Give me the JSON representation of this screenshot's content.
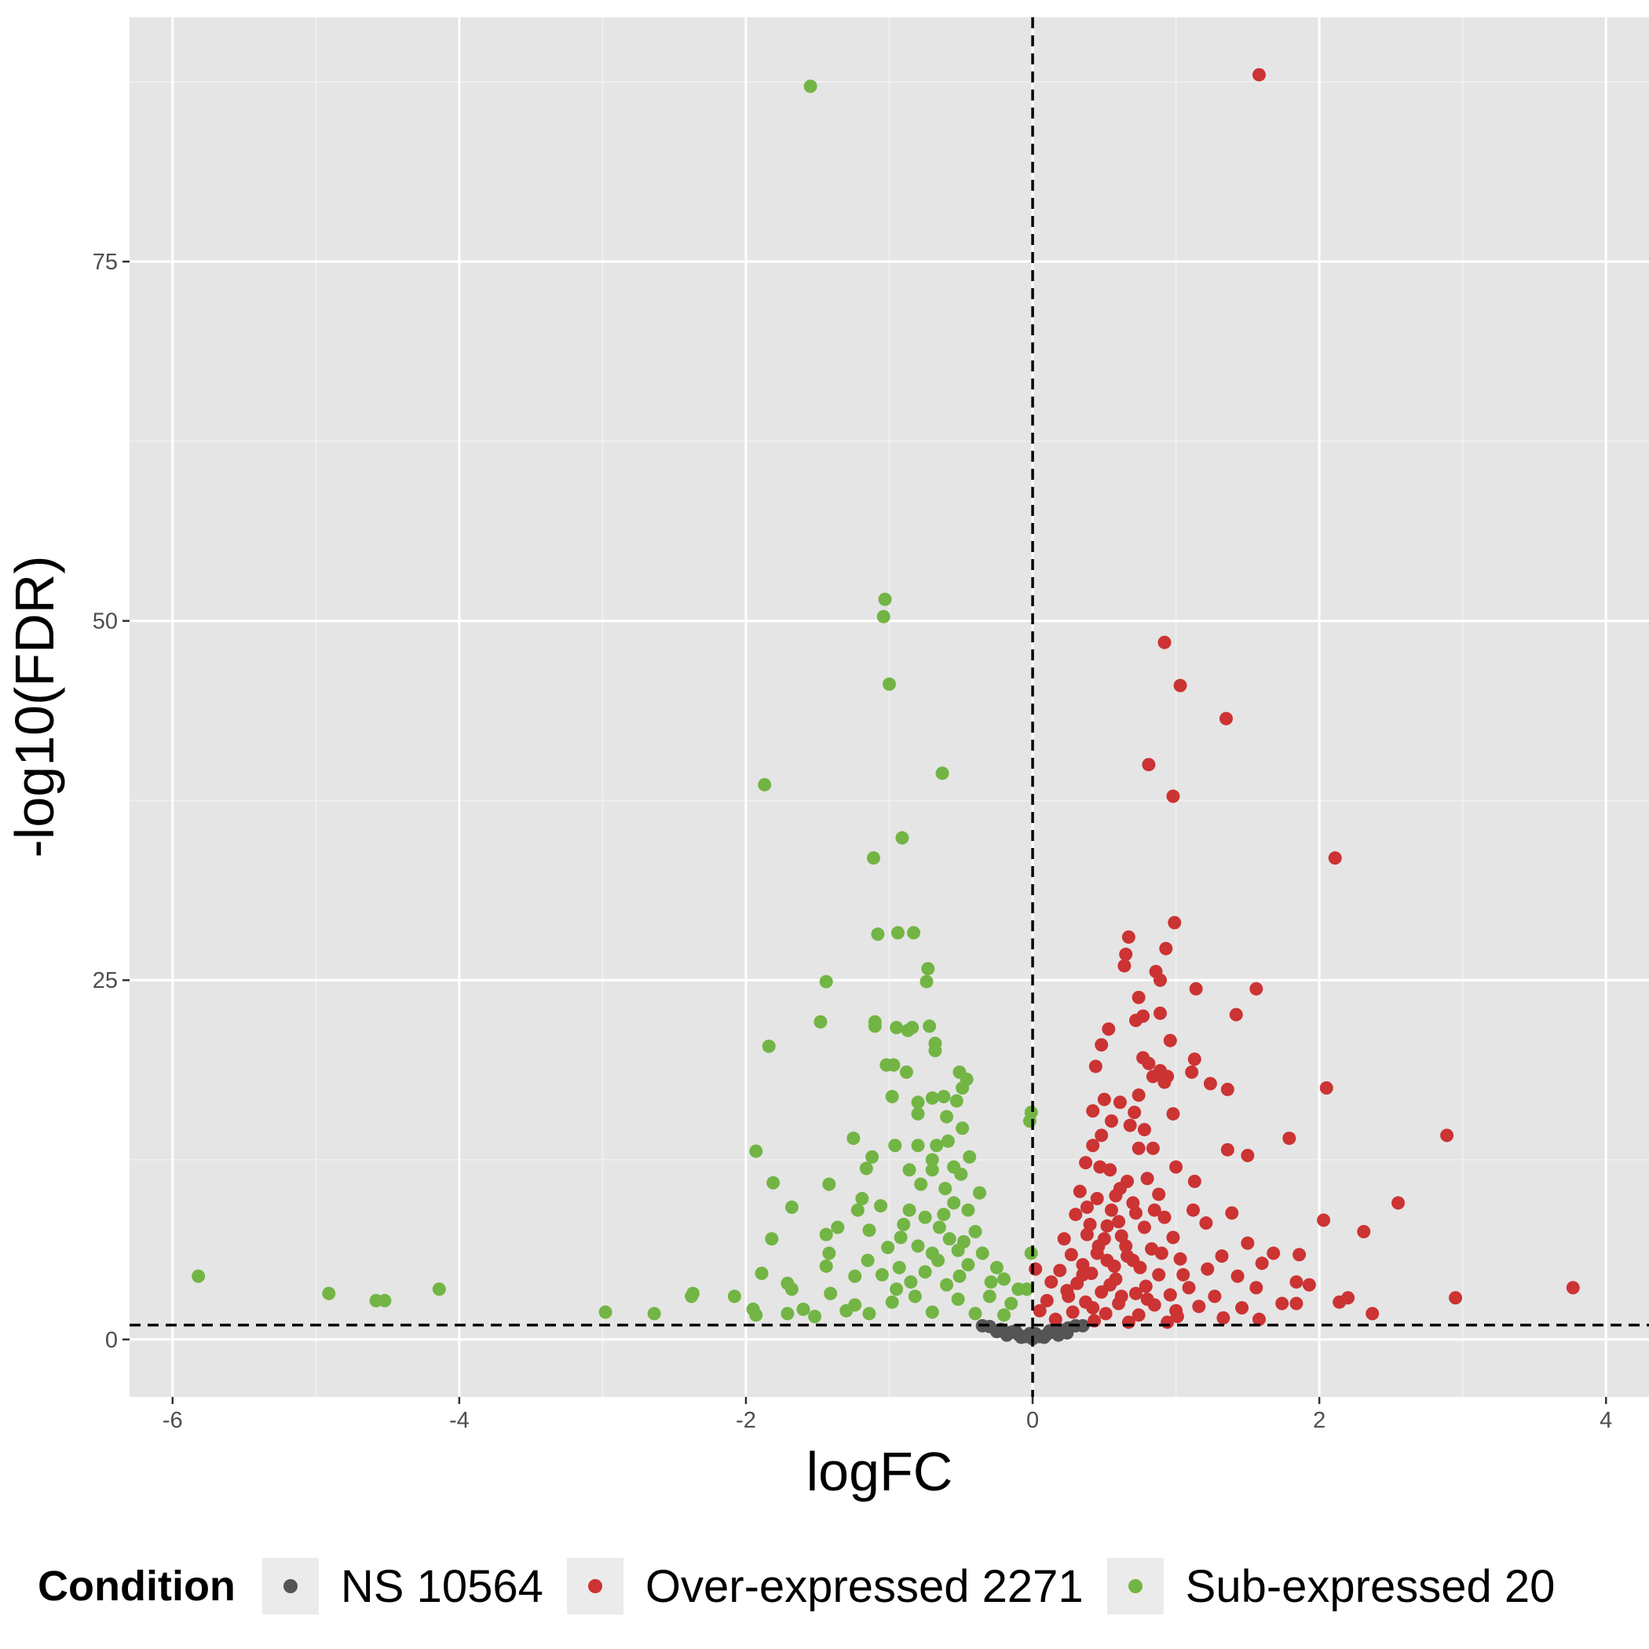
{
  "chart_data": {
    "type": "scatter",
    "title": "",
    "xlabel": "logFC",
    "ylabel": "-log10(FDR)",
    "xlim": [
      -6.3,
      4.3
    ],
    "ylim": [
      -4,
      92
    ],
    "x_ticks": [
      -6,
      -4,
      -2,
      0,
      2,
      4
    ],
    "x_tick_labels": [
      "-6",
      "-4",
      "-2",
      "0",
      "2",
      "4"
    ],
    "y_ticks": [
      0,
      25,
      50,
      75
    ],
    "y_tick_labels": [
      "0",
      "25",
      "50",
      "75"
    ],
    "grid": true,
    "reference_lines": {
      "vertical_x": 0,
      "horizontal_y": 1.0,
      "style": "dashed"
    },
    "legend": {
      "title": "Condition",
      "position": "bottom",
      "entries": [
        {
          "label": "NS 10564",
          "color": "#555555"
        },
        {
          "label": "Over-expressed 2271",
          "color": "#cc3333"
        },
        {
          "label": "Sub-expressed 20",
          "color": "#72b544"
        }
      ]
    },
    "series": [
      {
        "name": "NS 10564",
        "color": "#555555",
        "points": [
          [
            -0.3,
            0.9
          ],
          [
            -0.22,
            0.7
          ],
          [
            -0.15,
            0.5
          ],
          [
            -0.1,
            0.35
          ],
          [
            -0.05,
            0.2
          ],
          [
            0.0,
            0.05
          ],
          [
            0.05,
            0.2
          ],
          [
            0.1,
            0.35
          ],
          [
            0.15,
            0.5
          ],
          [
            0.2,
            0.65
          ],
          [
            0.25,
            0.8
          ],
          [
            0.3,
            0.95
          ],
          [
            -0.25,
            0.55
          ],
          [
            -0.18,
            0.3
          ],
          [
            -0.08,
            0.15
          ],
          [
            0.08,
            0.15
          ],
          [
            0.18,
            0.3
          ],
          [
            0.24,
            0.45
          ],
          [
            -0.35,
            0.95
          ],
          [
            0.35,
            0.95
          ],
          [
            -0.12,
            0.6
          ],
          [
            0.12,
            0.6
          ],
          [
            -0.02,
            0.4
          ],
          [
            0.02,
            0.4
          ]
        ]
      },
      {
        "name": "Over-expressed 2271",
        "color": "#cc3333",
        "points": [
          [
            1.58,
            88.0
          ],
          [
            0.92,
            48.5
          ],
          [
            1.03,
            45.5
          ],
          [
            1.35,
            43.2
          ],
          [
            0.81,
            40.0
          ],
          [
            0.98,
            37.8
          ],
          [
            2.11,
            33.5
          ],
          [
            0.99,
            29.0
          ],
          [
            0.67,
            28.0
          ],
          [
            0.65,
            26.8
          ],
          [
            0.93,
            27.2
          ],
          [
            0.86,
            25.6
          ],
          [
            0.64,
            26.0
          ],
          [
            0.89,
            25.0
          ],
          [
            1.14,
            24.4
          ],
          [
            1.56,
            24.4
          ],
          [
            0.74,
            23.8
          ],
          [
            1.42,
            22.6
          ],
          [
            0.89,
            22.7
          ],
          [
            0.77,
            22.5
          ],
          [
            0.72,
            22.2
          ],
          [
            0.53,
            21.6
          ],
          [
            0.48,
            20.5
          ],
          [
            0.96,
            20.8
          ],
          [
            0.77,
            19.6
          ],
          [
            0.81,
            19.2
          ],
          [
            0.44,
            19.0
          ],
          [
            1.13,
            19.5
          ],
          [
            0.89,
            18.7
          ],
          [
            0.84,
            18.3
          ],
          [
            0.94,
            18.3
          ],
          [
            0.92,
            17.9
          ],
          [
            1.11,
            18.6
          ],
          [
            1.24,
            17.8
          ],
          [
            1.36,
            17.4
          ],
          [
            2.05,
            17.5
          ],
          [
            0.74,
            17.0
          ],
          [
            0.5,
            16.7
          ],
          [
            0.61,
            16.5
          ],
          [
            0.42,
            15.9
          ],
          [
            0.71,
            15.8
          ],
          [
            0.98,
            15.7
          ],
          [
            0.55,
            15.2
          ],
          [
            0.68,
            14.9
          ],
          [
            0.78,
            14.6
          ],
          [
            0.48,
            14.2
          ],
          [
            1.79,
            14.0
          ],
          [
            2.89,
            14.2
          ],
          [
            0.42,
            13.5
          ],
          [
            0.74,
            13.3
          ],
          [
            0.84,
            13.3
          ],
          [
            1.36,
            13.2
          ],
          [
            1.5,
            12.8
          ],
          [
            0.37,
            12.3
          ],
          [
            1.0,
            12.0
          ],
          [
            0.54,
            11.8
          ],
          [
            0.8,
            11.2
          ],
          [
            1.13,
            11.0
          ],
          [
            0.61,
            10.5
          ],
          [
            0.33,
            10.3
          ],
          [
            0.88,
            10.1
          ],
          [
            2.55,
            9.5
          ],
          [
            0.45,
            9.8
          ],
          [
            0.7,
            9.5
          ],
          [
            1.12,
            9.0
          ],
          [
            1.39,
            8.8
          ],
          [
            2.03,
            8.3
          ],
          [
            0.3,
            8.7
          ],
          [
            0.92,
            8.5
          ],
          [
            1.21,
            8.1
          ],
          [
            0.52,
            7.9
          ],
          [
            0.78,
            7.8
          ],
          [
            2.31,
            7.5
          ],
          [
            0.38,
            7.3
          ],
          [
            0.62,
            7.2
          ],
          [
            0.98,
            7.1
          ],
          [
            0.22,
            7.0
          ],
          [
            1.5,
            6.7
          ],
          [
            1.68,
            6.0
          ],
          [
            0.46,
            6.5
          ],
          [
            0.83,
            6.3
          ],
          [
            1.32,
            5.8
          ],
          [
            1.86,
            5.9
          ],
          [
            0.27,
            5.9
          ],
          [
            0.66,
            5.8
          ],
          [
            1.03,
            5.6
          ],
          [
            1.6,
            5.3
          ],
          [
            0.35,
            5.2
          ],
          [
            0.57,
            5.1
          ],
          [
            0.75,
            5.0
          ],
          [
            1.22,
            4.9
          ],
          [
            0.02,
            4.9
          ],
          [
            0.19,
            4.8
          ],
          [
            0.41,
            4.6
          ],
          [
            0.88,
            4.5
          ],
          [
            1.43,
            4.4
          ],
          [
            1.84,
            4.0
          ],
          [
            1.93,
            3.8
          ],
          [
            0.13,
            4.0
          ],
          [
            0.31,
            3.9
          ],
          [
            0.54,
            3.8
          ],
          [
            0.79,
            3.7
          ],
          [
            1.09,
            3.6
          ],
          [
            1.56,
            3.6
          ],
          [
            3.77,
            3.6
          ],
          [
            0.24,
            3.4
          ],
          [
            0.48,
            3.3
          ],
          [
            0.72,
            3.2
          ],
          [
            0.96,
            3.1
          ],
          [
            1.27,
            3.0
          ],
          [
            2.95,
            2.9
          ],
          [
            2.2,
            2.9
          ],
          [
            2.14,
            2.6
          ],
          [
            1.74,
            2.5
          ],
          [
            1.84,
            2.5
          ],
          [
            0.1,
            2.7
          ],
          [
            0.37,
            2.6
          ],
          [
            0.6,
            2.5
          ],
          [
            0.85,
            2.4
          ],
          [
            1.16,
            2.3
          ],
          [
            1.46,
            2.2
          ],
          [
            2.37,
            1.8
          ],
          [
            0.05,
            2.0
          ],
          [
            0.28,
            1.9
          ],
          [
            0.51,
            1.8
          ],
          [
            0.74,
            1.7
          ],
          [
            1.01,
            1.6
          ],
          [
            1.33,
            1.5
          ],
          [
            1.58,
            1.4
          ],
          [
            0.16,
            1.4
          ],
          [
            0.43,
            1.3
          ],
          [
            0.67,
            1.2
          ],
          [
            0.94,
            1.2
          ],
          [
            0.55,
            9.0
          ],
          [
            0.6,
            8.2
          ],
          [
            0.4,
            8.0
          ],
          [
            0.5,
            7.0
          ],
          [
            0.45,
            6.0
          ],
          [
            0.65,
            6.5
          ],
          [
            0.7,
            5.5
          ],
          [
            0.58,
            4.2
          ],
          [
            0.62,
            3.0
          ],
          [
            0.35,
            4.5
          ],
          [
            0.85,
            9.0
          ],
          [
            0.9,
            6.0
          ],
          [
            1.05,
            4.5
          ],
          [
            0.25,
            3.0
          ],
          [
            0.42,
            2.2
          ],
          [
            0.8,
            2.8
          ],
          [
            1.0,
            2.0
          ],
          [
            0.47,
            12.0
          ],
          [
            0.66,
            11.0
          ],
          [
            0.58,
            10.0
          ],
          [
            0.38,
            9.2
          ],
          [
            0.72,
            8.8
          ],
          [
            0.52,
            5.5
          ]
        ]
      },
      {
        "name": "Sub-expressed 20",
        "color": "#72b544",
        "points": [
          [
            -1.55,
            87.2
          ],
          [
            -1.03,
            51.5
          ],
          [
            -1.04,
            50.3
          ],
          [
            -1.0,
            45.6
          ],
          [
            -0.63,
            39.4
          ],
          [
            -1.87,
            38.6
          ],
          [
            -0.91,
            34.9
          ],
          [
            -1.11,
            33.5
          ],
          [
            -0.83,
            28.3
          ],
          [
            -0.94,
            28.3
          ],
          [
            -1.08,
            28.2
          ],
          [
            -0.73,
            25.8
          ],
          [
            -0.74,
            24.9
          ],
          [
            -1.44,
            24.9
          ],
          [
            -1.1,
            22.1
          ],
          [
            -1.1,
            21.8
          ],
          [
            -1.48,
            22.1
          ],
          [
            -0.95,
            21.7
          ],
          [
            -0.84,
            21.7
          ],
          [
            -0.87,
            21.5
          ],
          [
            -0.72,
            21.8
          ],
          [
            -0.68,
            20.6
          ],
          [
            -1.84,
            20.4
          ],
          [
            -0.68,
            20.1
          ],
          [
            -1.02,
            19.1
          ],
          [
            -0.97,
            19.1
          ],
          [
            -0.88,
            18.6
          ],
          [
            -0.51,
            18.6
          ],
          [
            -0.46,
            18.1
          ],
          [
            -0.49,
            17.5
          ],
          [
            -0.98,
            16.9
          ],
          [
            -0.7,
            16.8
          ],
          [
            -0.62,
            16.9
          ],
          [
            -0.8,
            16.5
          ],
          [
            -0.53,
            16.6
          ],
          [
            -0.8,
            15.7
          ],
          [
            -0.6,
            15.5
          ],
          [
            -0.49,
            14.7
          ],
          [
            -0.01,
            15.8
          ],
          [
            -0.02,
            15.2
          ],
          [
            -1.25,
            14.0
          ],
          [
            -0.59,
            13.8
          ],
          [
            -0.96,
            13.5
          ],
          [
            -0.8,
            13.5
          ],
          [
            -0.67,
            13.5
          ],
          [
            -1.93,
            13.1
          ],
          [
            -1.12,
            12.7
          ],
          [
            -0.44,
            12.7
          ],
          [
            -1.16,
            11.9
          ],
          [
            -0.86,
            11.8
          ],
          [
            -0.7,
            11.8
          ],
          [
            -0.5,
            11.5
          ],
          [
            -1.81,
            10.9
          ],
          [
            -0.37,
            10.2
          ],
          [
            -1.19,
            9.8
          ],
          [
            -1.42,
            10.8
          ],
          [
            -1.68,
            9.2
          ],
          [
            -1.06,
            9.3
          ],
          [
            -0.86,
            9.0
          ],
          [
            -1.22,
            9.0
          ],
          [
            -0.62,
            8.7
          ],
          [
            -1.14,
            7.6
          ],
          [
            -1.36,
            7.8
          ],
          [
            -1.44,
            7.3
          ],
          [
            -0.92,
            7.1
          ],
          [
            -1.82,
            7.0
          ],
          [
            -0.48,
            6.8
          ],
          [
            -1.01,
            6.4
          ],
          [
            -1.42,
            6.0
          ],
          [
            -0.7,
            6.0
          ],
          [
            -1.15,
            5.5
          ],
          [
            -1.44,
            5.1
          ],
          [
            -1.89,
            4.6
          ],
          [
            -0.01,
            6.0
          ],
          [
            -0.93,
            5.0
          ],
          [
            -0.75,
            4.7
          ],
          [
            -0.51,
            4.4
          ],
          [
            -1.24,
            4.4
          ],
          [
            -1.71,
            3.9
          ],
          [
            -0.29,
            4.0
          ],
          [
            -1.68,
            3.5
          ],
          [
            -2.37,
            3.2
          ],
          [
            -2.38,
            3.0
          ],
          [
            -2.08,
            3.0
          ],
          [
            -5.82,
            4.4
          ],
          [
            -4.91,
            3.2
          ],
          [
            -4.58,
            2.7
          ],
          [
            -4.52,
            2.7
          ],
          [
            -4.14,
            3.5
          ],
          [
            -1.41,
            3.2
          ],
          [
            -0.82,
            3.0
          ],
          [
            -0.52,
            2.8
          ],
          [
            -0.04,
            3.5
          ],
          [
            -0.98,
            2.6
          ],
          [
            -1.24,
            2.4
          ],
          [
            -1.6,
            2.1
          ],
          [
            -1.95,
            2.1
          ],
          [
            -2.98,
            1.9
          ],
          [
            -2.64,
            1.8
          ],
          [
            -1.93,
            1.7
          ],
          [
            -1.52,
            1.6
          ],
          [
            -1.71,
            1.8
          ],
          [
            -1.14,
            1.8
          ],
          [
            -0.7,
            1.9
          ],
          [
            -0.4,
            1.8
          ],
          [
            -0.2,
            1.7
          ],
          [
            -0.61,
            10.5
          ],
          [
            -0.55,
            9.5
          ],
          [
            -0.45,
            9.0
          ],
          [
            -0.75,
            8.5
          ],
          [
            -0.65,
            7.8
          ],
          [
            -0.58,
            7.0
          ],
          [
            -0.4,
            7.5
          ],
          [
            -0.8,
            6.5
          ],
          [
            -0.52,
            6.2
          ],
          [
            -0.35,
            6.0
          ],
          [
            -0.66,
            5.5
          ],
          [
            -0.45,
            5.2
          ],
          [
            -0.85,
            4.0
          ],
          [
            -0.6,
            3.8
          ],
          [
            -0.3,
            3.0
          ],
          [
            -0.7,
            12.5
          ],
          [
            -0.55,
            12.0
          ],
          [
            -0.78,
            10.8
          ],
          [
            -0.9,
            8.0
          ],
          [
            -0.25,
            5.0
          ],
          [
            -0.15,
            2.5
          ],
          [
            -0.1,
            3.5
          ],
          [
            -0.2,
            4.2
          ],
          [
            -0.95,
            3.5
          ],
          [
            -1.05,
            4.5
          ],
          [
            -1.3,
            2.0
          ]
        ]
      }
    ]
  }
}
